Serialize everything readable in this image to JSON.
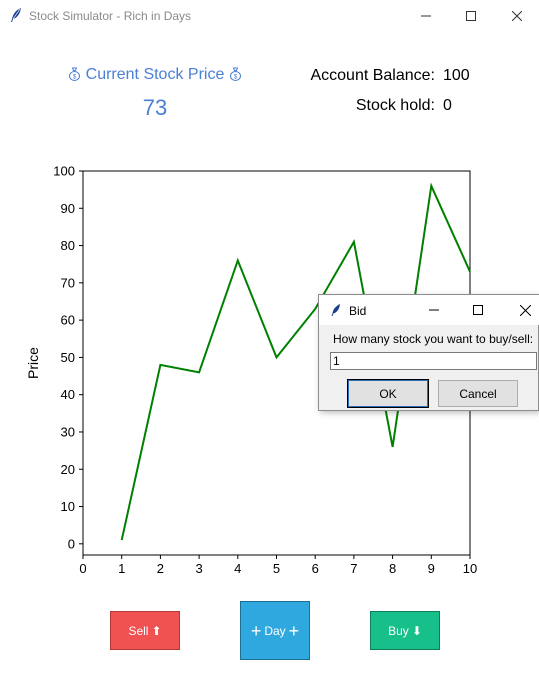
{
  "window": {
    "title": "Stock Simulator - Rich in Days",
    "icon": "feather-icon"
  },
  "header": {
    "price_label": "Current Stock Price",
    "price_value": "73",
    "balance_label": "Account Balance:",
    "balance_value": "100",
    "hold_label": "Stock hold:",
    "hold_value": "0"
  },
  "colors": {
    "price_text": "#4a7fd6",
    "line": "#008000",
    "sell": "#f05252",
    "day": "#2fa8df",
    "buy": "#17c08a"
  },
  "chart_data": {
    "type": "line",
    "title": "",
    "xlabel": "",
    "ylabel": "Price",
    "x": [
      1,
      2,
      3,
      4,
      5,
      6,
      7,
      8,
      9,
      10
    ],
    "series": [
      {
        "values": [
          1,
          48,
          46,
          76,
          50,
          63,
          81,
          26,
          96,
          73
        ],
        "color": "#008000"
      }
    ],
    "xlim": [
      0,
      10
    ],
    "ylim": [
      -3,
      100
    ],
    "xticks": [
      "0",
      "1",
      "2",
      "3",
      "4",
      "5",
      "6",
      "7",
      "8",
      "9",
      "10"
    ],
    "yticks": [
      "0",
      "10",
      "20",
      "30",
      "40",
      "50",
      "60",
      "70",
      "80",
      "90",
      "100"
    ],
    "grid": false,
    "legend": "none"
  },
  "buttons": {
    "sell": "Sell",
    "sell_icon": "⬆",
    "day": "Day",
    "day_icon": "+",
    "buy": "Buy",
    "buy_icon": "⬇"
  },
  "dialog": {
    "title": "Bid",
    "prompt": "How many stock you want to buy/sell:",
    "input_value": "1",
    "ok_label": "OK",
    "cancel_label": "Cancel"
  }
}
